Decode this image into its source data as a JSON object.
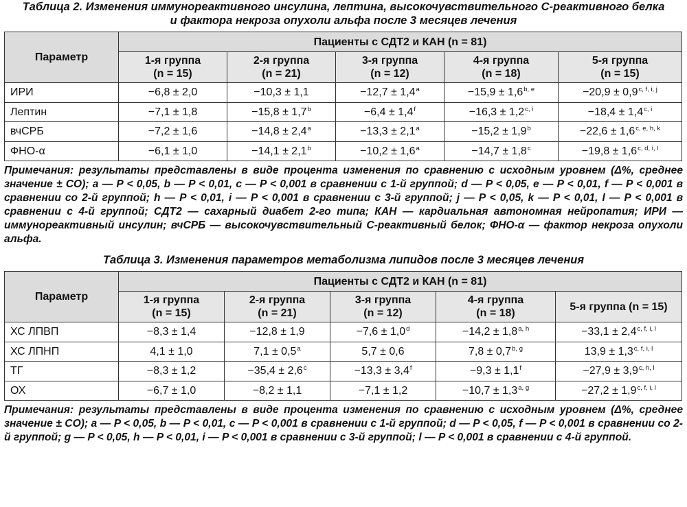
{
  "table2": {
    "caption": "Таблица 2. Изменения иммунореактивного инсулина, лептина, высокочувствительного С-реактивного белка и фактора некроза опухоли альфа после 3 месяцев лечения",
    "param_header": "Параметр",
    "group_header": "Пациенты с СДТ2 и КАН (n = 81)",
    "columns": [
      [
        "1-я группа",
        "(n = 15)"
      ],
      [
        "2-я группа",
        "(n = 21)"
      ],
      [
        "3-я группа",
        "(n = 12)"
      ],
      [
        "4-я группа",
        "(n = 18)"
      ],
      [
        "5-я группа",
        "(n = 15)"
      ]
    ],
    "rows": [
      {
        "name": "ИРИ",
        "cells": [
          [
            "−6,8 ± 2,0",
            ""
          ],
          [
            "−10,3 ± 1,1",
            ""
          ],
          [
            "−12,7 ± 1,4",
            "a"
          ],
          [
            "−15,9 ± 1,6",
            "b, e"
          ],
          [
            "−20,9 ± 0,9",
            "c, f, i, j"
          ]
        ]
      },
      {
        "name": "Лептин",
        "cells": [
          [
            "−7,1 ± 1,8",
            ""
          ],
          [
            "−15,8 ± 1,7",
            "b"
          ],
          [
            "−6,4 ± 1,4",
            "f"
          ],
          [
            "−16,3 ± 1,2",
            "c, i"
          ],
          [
            "−18,4 ± 1,4",
            "c, i"
          ]
        ]
      },
      {
        "name": "вчСРБ",
        "cells": [
          [
            "−7,2 ± 1,6",
            ""
          ],
          [
            "−14,8 ± 2,4",
            "a"
          ],
          [
            "−13,3 ± 2,1",
            "a"
          ],
          [
            "−15,2 ± 1,9",
            "b"
          ],
          [
            "−22,6 ± 1,6",
            "c, e, h, k"
          ]
        ]
      },
      {
        "name": "ФНО-α",
        "cells": [
          [
            "−6,1 ± 1,0",
            ""
          ],
          [
            "−14,1 ± 2,1",
            "b"
          ],
          [
            "−10,2 ± 1,6",
            "a"
          ],
          [
            "−14,7 ± 1,8",
            "c"
          ],
          [
            "−19,8 ± 1,6",
            "c, d, i, l"
          ]
        ]
      }
    ],
    "notes": "Примечания: результаты представлены в виде процента изменения по сравнению с исходным уровнем (Δ%, среднее значение ± СО); a — P < 0,05, b — P < 0,01, c — P < 0,001 в сравнении с 1-й группой; d — P < 0,05, e — P < 0,01, f — P < 0,001 в сравнении со 2-й группой; h — P < 0,01, i — P < 0,001 в сравнении с 3-й группой; j — P < 0,05, k — P < 0,01, l — P < 0,001 в сравнении с 4-й группой; СДТ2 — сахарный диабет 2-го типа; КАН — кардиальная автономная нейропатия; ИРИ — иммунореактивный инсулин; вчСРБ — высокочувствительный С-реактивный белок; ФНО-α — фактор некроза опухоли альфа."
  },
  "table3": {
    "caption": "Таблица 3. Изменения параметров метаболизма липидов после 3 месяцев лечения",
    "param_header": "Параметр",
    "group_header": "Пациенты с СДТ2 и КАН (n = 81)",
    "columns": [
      [
        "1-я группа",
        "(n = 15)"
      ],
      [
        "2-я группа",
        "(n = 21)"
      ],
      [
        "3-я группа",
        "(n = 12)"
      ],
      [
        "4-я группа",
        "(n = 18)"
      ],
      [
        "5-я группа (n = 15)",
        ""
      ]
    ],
    "rows": [
      {
        "name": "ХС ЛПВП",
        "cells": [
          [
            "−8,3 ± 1,4",
            ""
          ],
          [
            "−12,8 ± 1,9",
            ""
          ],
          [
            "−7,6 ± 1,0",
            "d"
          ],
          [
            "−14,2 ± 1,8",
            "a, h"
          ],
          [
            "−33,1 ± 2,4",
            "c, f, i, l"
          ]
        ]
      },
      {
        "name": "ХС ЛПНП",
        "cells": [
          [
            "4,1 ± 1,0",
            ""
          ],
          [
            "7,1 ± 0,5",
            "a"
          ],
          [
            "5,7 ± 0,6",
            ""
          ],
          [
            "7,8 ± 0,7",
            "b, g"
          ],
          [
            "13,9 ± 1,3",
            "c, f, i, l"
          ]
        ]
      },
      {
        "name": "ТГ",
        "cells": [
          [
            "−8,3 ± 1,2",
            ""
          ],
          [
            "−35,4 ± 2,6",
            "c"
          ],
          [
            "−13,3 ± 3,4",
            "f"
          ],
          [
            "−9,3 ± 1,1",
            "f"
          ],
          [
            "−27,9 ± 3,9",
            "c, h, l"
          ]
        ]
      },
      {
        "name": "ОХ",
        "cells": [
          [
            "−6,7 ± 1,0",
            ""
          ],
          [
            "−8,2 ± 1,1",
            ""
          ],
          [
            "−7,1 ± 1,2",
            ""
          ],
          [
            "−10,7 ± 1,3",
            "a, g"
          ],
          [
            "−27,2 ± 1,9",
            "c, f, i, l"
          ]
        ]
      }
    ],
    "notes": "Примечания: результаты представлены в виде процента изменения по сравнению с исходным уровнем (Δ%, среднее значение ± СО); a — P < 0,05, b — P < 0,01, c — P < 0,001 в сравнении с 1-й группой; d — P < 0,05, f — P < 0,001 в сравнении со 2-й группой; g — P < 0,05, h — P < 0,01, i — P < 0,001 в сравнении с 3-й группой; l — P < 0,001 в сравнении с 4-й группой."
  }
}
